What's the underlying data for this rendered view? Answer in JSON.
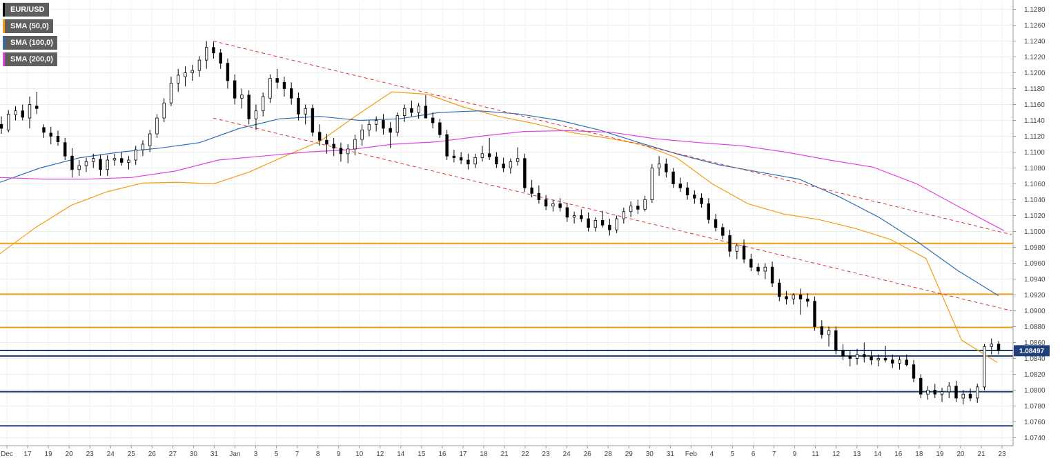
{
  "legend": {
    "items": [
      {
        "label": "EUR/USD",
        "color": "#000000"
      },
      {
        "label": "SMA (50,0)",
        "color": "#f39c12"
      },
      {
        "label": "SMA (100,0)",
        "color": "#2e6db4"
      },
      {
        "label": "SMA (200,0)",
        "color": "#e040e0"
      }
    ]
  },
  "price_tag": "1.08497",
  "chart_data": {
    "type": "candlestick",
    "symbol": "EUR/USD",
    "ylim": [
      1.073,
      1.129
    ],
    "y_ticks": [
      "1.1280",
      "1.1260",
      "1.1240",
      "1.1220",
      "1.1200",
      "1.1180",
      "1.1160",
      "1.1140",
      "1.1120",
      "1.1100",
      "1.1080",
      "1.1060",
      "1.1040",
      "1.1020",
      "1.1000",
      "1.0980",
      "1.0960",
      "1.0940",
      "1.0920",
      "1.0900",
      "1.0880",
      "1.0860",
      "1.0840",
      "1.0820",
      "1.0800",
      "1.0780",
      "1.0760",
      "1.0740"
    ],
    "x_ticks": [
      "Dec",
      "17",
      "19",
      "20",
      "23",
      "24",
      "25",
      "26",
      "27",
      "30",
      "31",
      "Jan",
      "3",
      "5",
      "7",
      "8",
      "9",
      "10",
      "12",
      "14",
      "15",
      "16",
      "17",
      "18",
      "21",
      "22",
      "23",
      "24",
      "26",
      "28",
      "29",
      "30",
      "31",
      "Feb",
      "4",
      "5",
      "6",
      "7",
      "9",
      "11",
      "12",
      "13",
      "14",
      "16",
      "18",
      "19",
      "20",
      "21",
      "23"
    ],
    "last_price": 1.08497,
    "horizontal_levels": [
      {
        "value": 1.0985,
        "color": "#f39c12"
      },
      {
        "value": 1.0921,
        "color": "#f39c12"
      },
      {
        "value": 1.0879,
        "color": "#f39c12"
      },
      {
        "value": 1.085,
        "color": "#1f3f7a"
      },
      {
        "value": 1.0843,
        "color": "#1f3f7a"
      },
      {
        "value": 1.0798,
        "color": "#1f3f7a"
      },
      {
        "value": 1.0755,
        "color": "#1f3f7a"
      }
    ],
    "trendlines": [
      {
        "from": {
          "x": "31",
          "y": 1.124
        },
        "to": {
          "x": "23",
          "y": 1.0996
        },
        "color": "#e03030"
      },
      {
        "from": {
          "x": "31",
          "y": 1.1143
        },
        "to": {
          "x": "23",
          "y": 1.09
        },
        "color": "#e03030"
      }
    ],
    "series": [
      {
        "name": "SMA (50,0)",
        "color": "#f39c12",
        "values": [
          1.0972,
          1.1005,
          1.1033,
          1.105,
          1.1061,
          1.1062,
          1.106,
          1.1075,
          1.1095,
          1.1114,
          1.1146,
          1.1176,
          1.1173,
          1.1157,
          1.1145,
          1.1136,
          1.1125,
          1.1118,
          1.111,
          1.1093,
          1.106,
          1.1035,
          1.1022,
          1.1015,
          1.1004,
          1.099,
          1.0966,
          1.0863,
          1.0835
        ]
      },
      {
        "name": "SMA (100,0)",
        "color": "#2e6db4",
        "values": [
          1.1062,
          1.108,
          1.1093,
          1.11,
          1.1105,
          1.1112,
          1.113,
          1.1142,
          1.1145,
          1.114,
          1.1142,
          1.115,
          1.1152,
          1.1148,
          1.114,
          1.1128,
          1.1112,
          1.1097,
          1.1084,
          1.1075,
          1.1066,
          1.1044,
          1.1018,
          1.0986,
          1.095,
          1.0919
        ]
      },
      {
        "name": "SMA (200,0)",
        "color": "#e040e0",
        "values": [
          1.1068,
          1.1066,
          1.1066,
          1.1068,
          1.1076,
          1.109,
          1.1095,
          1.11,
          1.1103,
          1.111,
          1.1113,
          1.112,
          1.1126,
          1.1127,
          1.1125,
          1.1117,
          1.1112,
          1.1108,
          1.11,
          1.109,
          1.1081,
          1.106,
          1.103,
          1.1001
        ]
      }
    ],
    "candles": [
      [
        1.1135,
        1.1145,
        1.1123,
        1.113
      ],
      [
        1.1128,
        1.1153,
        1.1125,
        1.1148
      ],
      [
        1.1147,
        1.1158,
        1.114,
        1.1152
      ],
      [
        1.1152,
        1.116,
        1.114,
        1.1144
      ],
      [
        1.1143,
        1.117,
        1.113,
        1.116
      ],
      [
        1.1158,
        1.1176,
        1.1148,
        1.1155
      ],
      [
        1.1131,
        1.1135,
        1.1118,
        1.1125
      ],
      [
        1.1124,
        1.1132,
        1.111,
        1.112
      ],
      [
        1.112,
        1.1127,
        1.1108,
        1.1113
      ],
      [
        1.1112,
        1.1118,
        1.109,
        1.1095
      ],
      [
        1.1095,
        1.1105,
        1.1068,
        1.1078
      ],
      [
        1.1078,
        1.109,
        1.107,
        1.1083
      ],
      [
        1.1083,
        1.1093,
        1.1075,
        1.1088
      ],
      [
        1.1088,
        1.1098,
        1.108,
        1.1092
      ],
      [
        1.1091,
        1.1097,
        1.107,
        1.1078
      ],
      [
        1.1078,
        1.1096,
        1.107,
        1.109
      ],
      [
        1.109,
        1.1098,
        1.1083,
        1.1092
      ],
      [
        1.1092,
        1.11,
        1.1083,
        1.1087
      ],
      [
        1.1087,
        1.1095,
        1.1078,
        1.109
      ],
      [
        1.109,
        1.1108,
        1.1084,
        1.1103
      ],
      [
        1.1103,
        1.1115,
        1.1095,
        1.111
      ],
      [
        1.1108,
        1.1128,
        1.11,
        1.1123
      ],
      [
        1.1123,
        1.1148,
        1.1118,
        1.1143
      ],
      [
        1.1143,
        1.1168,
        1.1138,
        1.1162
      ],
      [
        1.1162,
        1.1195,
        1.1158,
        1.1187
      ],
      [
        1.1187,
        1.1205,
        1.1176,
        1.1197
      ],
      [
        1.1195,
        1.1208,
        1.1183,
        1.12
      ],
      [
        1.12,
        1.121,
        1.119,
        1.1203
      ],
      [
        1.1203,
        1.1221,
        1.1195,
        1.1216
      ],
      [
        1.1216,
        1.124,
        1.1205,
        1.1232
      ],
      [
        1.1232,
        1.1239,
        1.1218,
        1.1225
      ],
      [
        1.1225,
        1.123,
        1.1205,
        1.1212
      ],
      [
        1.1212,
        1.1218,
        1.118,
        1.119
      ],
      [
        1.119,
        1.1198,
        1.116,
        1.1168
      ],
      [
        1.1168,
        1.118,
        1.1155,
        1.1172
      ],
      [
        1.1172,
        1.1178,
        1.1135,
        1.1142
      ],
      [
        1.1142,
        1.116,
        1.1128,
        1.1152
      ],
      [
        1.1152,
        1.1175,
        1.1145,
        1.117
      ],
      [
        1.1168,
        1.1198,
        1.1162,
        1.1193
      ],
      [
        1.1193,
        1.1205,
        1.118,
        1.1188
      ],
      [
        1.1188,
        1.1195,
        1.117,
        1.118
      ],
      [
        1.118,
        1.1188,
        1.116,
        1.1168
      ],
      [
        1.1168,
        1.1175,
        1.114,
        1.1148
      ],
      [
        1.1148,
        1.116,
        1.1135,
        1.1155
      ],
      [
        1.1155,
        1.116,
        1.112,
        1.1125
      ],
      [
        1.1125,
        1.1135,
        1.1108,
        1.1115
      ],
      [
        1.1115,
        1.1123,
        1.1098,
        1.111
      ],
      [
        1.111,
        1.1118,
        1.1095,
        1.1105
      ],
      [
        1.1105,
        1.1112,
        1.1088,
        1.1098
      ],
      [
        1.1098,
        1.111,
        1.1086,
        1.1104
      ],
      [
        1.1104,
        1.1122,
        1.1096,
        1.1116
      ],
      [
        1.1116,
        1.1135,
        1.1108,
        1.1128
      ],
      [
        1.1128,
        1.114,
        1.112,
        1.1135
      ],
      [
        1.1135,
        1.1145,
        1.1126,
        1.114
      ],
      [
        1.114,
        1.1148,
        1.1122,
        1.113
      ],
      [
        1.113,
        1.1138,
        1.1105,
        1.1125
      ],
      [
        1.1125,
        1.115,
        1.112,
        1.1146
      ],
      [
        1.1146,
        1.116,
        1.1138,
        1.1155
      ],
      [
        1.1155,
        1.1165,
        1.1145,
        1.115
      ],
      [
        1.115,
        1.1162,
        1.1142,
        1.1158
      ],
      [
        1.1158,
        1.1172,
        1.1148,
        1.1143
      ],
      [
        1.1143,
        1.115,
        1.113,
        1.1137
      ],
      [
        1.1137,
        1.1142,
        1.1118,
        1.1122
      ],
      [
        1.1122,
        1.1128,
        1.109,
        1.1095
      ],
      [
        1.1095,
        1.1103,
        1.1087,
        1.1093
      ],
      [
        1.1093,
        1.11,
        1.1085,
        1.109
      ],
      [
        1.109,
        1.1098,
        1.1078,
        1.1085
      ],
      [
        1.1085,
        1.1098,
        1.108,
        1.1093
      ],
      [
        1.1093,
        1.1108,
        1.1088,
        1.1098
      ],
      [
        1.1098,
        1.1118,
        1.109,
        1.1094
      ],
      [
        1.1094,
        1.11,
        1.108,
        1.1085
      ],
      [
        1.1085,
        1.1093,
        1.1075,
        1.108
      ],
      [
        1.108,
        1.1092,
        1.1073,
        1.1088
      ],
      [
        1.1088,
        1.1106,
        1.1083,
        1.1092
      ],
      [
        1.1092,
        1.1098,
        1.105,
        1.1055
      ],
      [
        1.1055,
        1.1065,
        1.1043,
        1.1048
      ],
      [
        1.1048,
        1.1058,
        1.1035,
        1.104
      ],
      [
        1.104,
        1.1046,
        1.1027,
        1.1032
      ],
      [
        1.1032,
        1.104,
        1.1025,
        1.1035
      ],
      [
        1.1035,
        1.1042,
        1.1025,
        1.103
      ],
      [
        1.103,
        1.1036,
        1.1012,
        1.1018
      ],
      [
        1.1018,
        1.1025,
        1.101,
        1.102
      ],
      [
        1.102,
        1.1028,
        1.1012,
        1.1016
      ],
      [
        1.1016,
        1.1024,
        1.1,
        1.1005
      ],
      [
        1.1005,
        1.1018,
        1.1,
        1.1014
      ],
      [
        1.1014,
        1.1026,
        1.1005,
        1.1008
      ],
      [
        1.1008,
        1.1016,
        1.0995,
        1.1002
      ],
      [
        1.1002,
        1.102,
        1.0998,
        1.1016
      ],
      [
        1.1016,
        1.103,
        1.101,
        1.1025
      ],
      [
        1.1025,
        1.1038,
        1.1018,
        1.1032
      ],
      [
        1.1032,
        1.104,
        1.1022,
        1.1028
      ],
      [
        1.1028,
        1.1045,
        1.1025,
        1.104
      ],
      [
        1.104,
        1.1085,
        1.1036,
        1.108
      ],
      [
        1.108,
        1.1095,
        1.107,
        1.1085
      ],
      [
        1.1085,
        1.1092,
        1.1068,
        1.1075
      ],
      [
        1.1075,
        1.108,
        1.1055,
        1.106
      ],
      [
        1.106,
        1.1068,
        1.105,
        1.1055
      ],
      [
        1.1055,
        1.1062,
        1.104,
        1.1046
      ],
      [
        1.1046,
        1.1052,
        1.1035,
        1.1042
      ],
      [
        1.1042,
        1.1048,
        1.103,
        1.1035
      ],
      [
        1.1035,
        1.1042,
        1.101,
        1.1015
      ],
      [
        1.1015,
        1.1022,
        1.1,
        1.1005
      ],
      [
        1.1005,
        1.101,
        1.099,
        1.0995
      ],
      [
        1.0995,
        1.1002,
        1.0968,
        1.0975
      ],
      [
        1.0975,
        1.0985,
        1.0965,
        1.0982
      ],
      [
        1.0982,
        1.099,
        1.096,
        1.0965
      ],
      [
        1.0965,
        1.0972,
        1.095,
        1.0955
      ],
      [
        1.0955,
        1.096,
        1.0945,
        1.095
      ],
      [
        1.095,
        1.096,
        1.094,
        1.0955
      ],
      [
        1.0955,
        1.0962,
        1.093,
        1.0935
      ],
      [
        1.0935,
        1.094,
        1.0912,
        1.0918
      ],
      [
        1.0918,
        1.0925,
        1.0908,
        1.0915
      ],
      [
        1.0915,
        1.0922,
        1.0908,
        1.092
      ],
      [
        1.092,
        1.0928,
        1.0895,
        1.0915
      ],
      [
        1.0915,
        1.0922,
        1.0905,
        1.0912
      ],
      [
        1.0912,
        1.0918,
        1.0875,
        1.088
      ],
      [
        1.088,
        1.0888,
        1.0865,
        1.087
      ],
      [
        1.087,
        1.088,
        1.0855,
        1.0875
      ],
      [
        1.0875,
        1.088,
        1.0845,
        1.085
      ],
      [
        1.085,
        1.0858,
        1.0838,
        1.0843
      ],
      [
        1.0843,
        1.085,
        1.083,
        1.084
      ],
      [
        1.084,
        1.0852,
        1.0832,
        1.0845
      ],
      [
        1.0845,
        1.086,
        1.0835,
        1.0842
      ],
      [
        1.0842,
        1.085,
        1.0832,
        1.0838
      ],
      [
        1.0838,
        1.0845,
        1.083,
        1.084
      ],
      [
        1.084,
        1.0856,
        1.0835,
        1.0838
      ],
      [
        1.0838,
        1.0845,
        1.0828,
        1.0834
      ],
      [
        1.0834,
        1.0842,
        1.0826,
        1.0838
      ],
      [
        1.0838,
        1.0845,
        1.083,
        1.0832
      ],
      [
        1.0832,
        1.0838,
        1.081,
        1.0815
      ],
      [
        1.0815,
        1.082,
        1.079,
        1.0795
      ],
      [
        1.0795,
        1.0805,
        1.0788,
        1.08
      ],
      [
        1.08,
        1.0808,
        1.079,
        1.0795
      ],
      [
        1.0795,
        1.0803,
        1.0785,
        1.0798
      ],
      [
        1.0798,
        1.081,
        1.079,
        1.0805
      ],
      [
        1.0805,
        1.0812,
        1.0785,
        1.079
      ],
      [
        1.079,
        1.08,
        1.0782,
        1.0795
      ],
      [
        1.0795,
        1.0802,
        1.0786,
        1.079
      ],
      [
        1.079,
        1.0808,
        1.0784,
        1.0804
      ],
      [
        1.0804,
        1.0858,
        1.08,
        1.0855
      ],
      [
        1.0855,
        1.0865,
        1.0845,
        1.0858
      ],
      [
        1.0858,
        1.0862,
        1.0845,
        1.08497
      ]
    ]
  }
}
